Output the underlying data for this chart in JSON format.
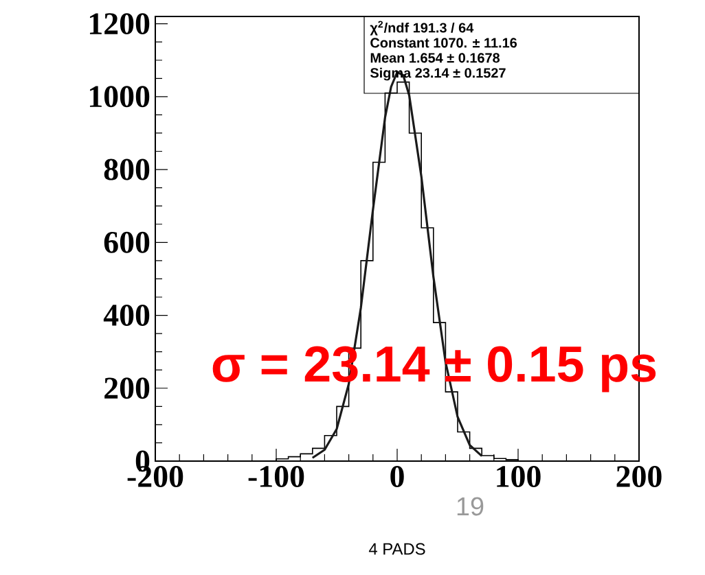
{
  "chart_data": {
    "type": "histogram",
    "xlabel": "4 PADS",
    "bins": [
      -100,
      -90,
      -80,
      -70,
      -60,
      -50,
      -40,
      -30,
      -20,
      -10,
      0,
      10,
      20,
      30,
      40,
      50,
      60,
      70,
      80,
      90,
      100
    ],
    "values": [
      6,
      12,
      20,
      35,
      70,
      150,
      310,
      550,
      820,
      1010,
      1040,
      900,
      640,
      380,
      190,
      80,
      35,
      15,
      7,
      4
    ],
    "color": "#000000",
    "series": [
      {
        "type": "line",
        "color": "#1a1a1a",
        "x": [
          -70,
          -60,
          -50,
          -40,
          -30,
          -20,
          -10,
          -5,
          0,
          5,
          10,
          20,
          30,
          40,
          50,
          60,
          70
        ],
        "values": [
          9,
          31,
          88,
          212,
          421,
          690,
          943,
          1027,
          1067,
          1059,
          1003,
          781,
          505,
          272,
          121,
          44,
          14
        ]
      }
    ],
    "xlim": [
      -200,
      200
    ],
    "ylim": [
      0,
      1220
    ],
    "xticks": [
      -200,
      -100,
      0,
      100,
      200
    ],
    "yticks": [
      0,
      200,
      400,
      600,
      800,
      1000,
      1200
    ],
    "annotations": [
      "χ$^{2}$/ndf 191.3 / 64",
      "Constant 1070. ± 11.16",
      "Mean 1.654 ± 0.1678",
      "Sigma 23.14 ± 0.1527",
      "σ = 23.14 ± 0.15 ps",
      "19"
    ]
  }
}
